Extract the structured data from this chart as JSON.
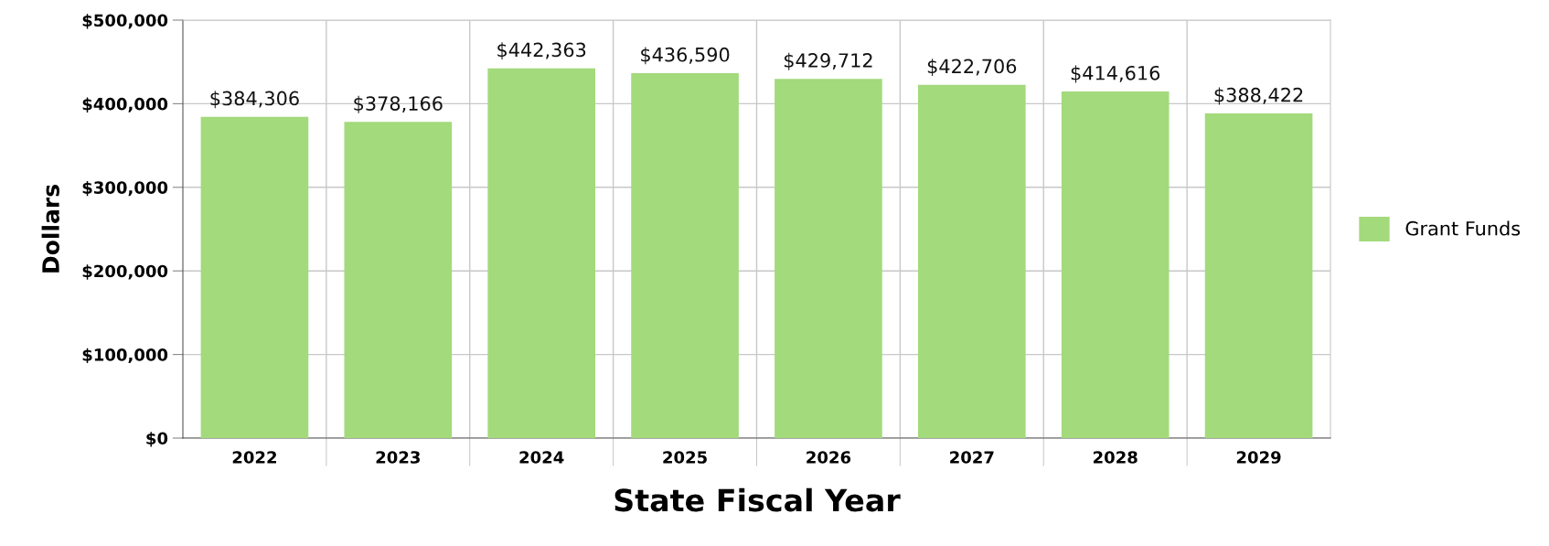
{
  "chart_data": {
    "type": "bar",
    "xlabel": "State Fiscal Year",
    "ylabel": "Dollars",
    "categories": [
      "2022",
      "2023",
      "2024",
      "2025",
      "2026",
      "2027",
      "2028",
      "2029"
    ],
    "series": [
      {
        "name": "Grant Funds",
        "color": "#a3da7c",
        "values": [
          384306,
          378166,
          442363,
          436590,
          429712,
          422706,
          414616,
          388422
        ],
        "value_labels": [
          "$384,306",
          "$378,166",
          "$442,363",
          "$436,590",
          "$429,712",
          "$422,706",
          "$414,616",
          "$388,422"
        ]
      }
    ],
    "ylim": [
      0,
      500000
    ],
    "yticks": [
      {
        "value": 0,
        "label": "$0"
      },
      {
        "value": 100000,
        "label": "$100,000"
      },
      {
        "value": 200000,
        "label": "$200,000"
      },
      {
        "value": 300000,
        "label": "$300,000"
      },
      {
        "value": 400000,
        "label": "$400,000"
      },
      {
        "value": 500000,
        "label": "$500,000"
      }
    ],
    "grid": true,
    "legend": "right"
  }
}
